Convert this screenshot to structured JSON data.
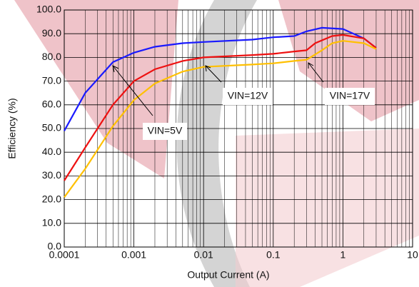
{
  "chart_data": {
    "type": "line",
    "xlabel": "Output Current (A)",
    "ylabel": "Efficiency (%)",
    "x_log": true,
    "x_minor_grid": true,
    "grid": true,
    "xlim": [
      0.0001,
      10
    ],
    "xticks": [
      0.0001,
      0.001,
      0.01,
      0.1,
      1,
      10
    ],
    "ylim": [
      0,
      100
    ],
    "yticks": [
      {
        "value": 0,
        "label": "0.0"
      },
      {
        "value": 10,
        "label": "10.0"
      },
      {
        "value": 20,
        "label": "20.0"
      },
      {
        "value": 30,
        "label": "30.0"
      },
      {
        "value": 40,
        "label": "40.0"
      },
      {
        "value": 50,
        "label": "50.0"
      },
      {
        "value": 60,
        "label": "60.0"
      },
      {
        "value": 70,
        "label": "70.0"
      },
      {
        "value": 80,
        "label": "80.0"
      },
      {
        "value": 90,
        "label": "90.0"
      },
      {
        "value": 100,
        "label": "100.0"
      }
    ],
    "annotations": [
      "VIN=5V",
      "VIN=12V",
      "VIN=17V"
    ],
    "series": [
      {
        "name": "VIN=5V",
        "color": "#1a1aff",
        "x": [
          0.0001,
          0.0002,
          0.0005,
          0.001,
          0.002,
          0.005,
          0.01,
          0.05,
          0.1,
          0.2,
          0.3,
          0.5,
          1,
          2,
          3
        ],
        "values": [
          49,
          65,
          78,
          82,
          84.5,
          86,
          86.5,
          87.5,
          88.5,
          89,
          91,
          92.5,
          92,
          88,
          84
        ]
      },
      {
        "name": "VIN=12V",
        "color": "#ee1111",
        "x": [
          0.0001,
          0.0002,
          0.0005,
          0.001,
          0.002,
          0.005,
          0.01,
          0.05,
          0.1,
          0.2,
          0.3,
          0.4,
          0.7,
          1,
          2,
          3
        ],
        "values": [
          28,
          42,
          60,
          70,
          75,
          78.5,
          80,
          81,
          81.5,
          82.5,
          83,
          86,
          89,
          89.5,
          88,
          84
        ]
      },
      {
        "name": "VIN=17V",
        "color": "#ffc000",
        "x": [
          0.0001,
          0.0002,
          0.0005,
          0.001,
          0.002,
          0.005,
          0.01,
          0.05,
          0.1,
          0.2,
          0.3,
          0.5,
          0.7,
          1,
          2,
          3
        ],
        "values": [
          21,
          33,
          51,
          62,
          69,
          74,
          76,
          77,
          77.5,
          78.5,
          79,
          83,
          86,
          87,
          86,
          83.5
        ]
      }
    ]
  }
}
